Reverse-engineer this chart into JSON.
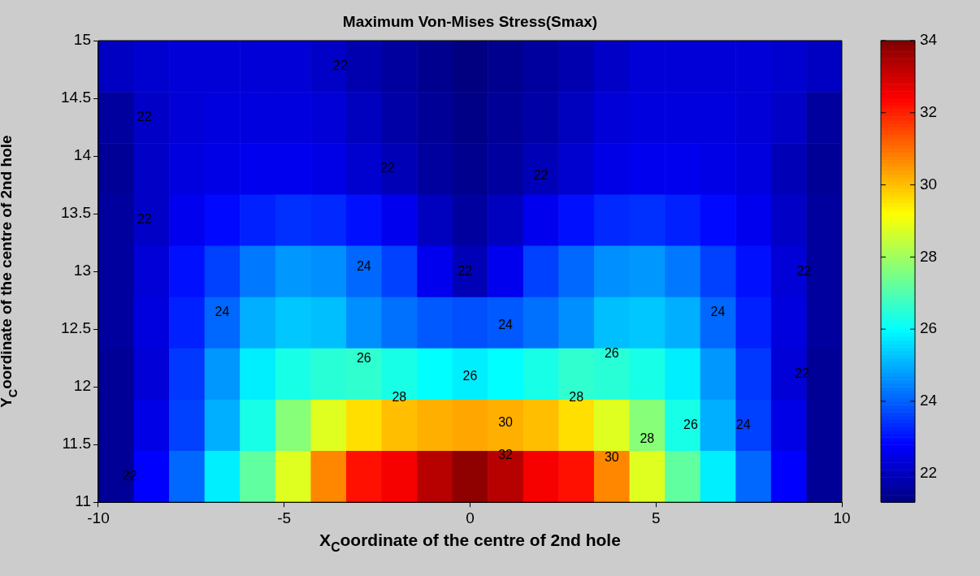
{
  "chart_data": {
    "type": "heatmap",
    "title": "Maximum Von-Mises Stress(Smax)",
    "xlabel": "X$_{C}$oordinate of the centre of 2nd hole",
    "ylabel": "Y$_{C}$oordinate of the centre of 2nd hole",
    "cells": [
      [
        22.05,
        22.2,
        22.3,
        22.3,
        22.3,
        22.3,
        22.1,
        21.8,
        21.6,
        21.4,
        21.2,
        21.4,
        21.6,
        21.8,
        22.1,
        22.3,
        22.3,
        22.3,
        22.3,
        22.2,
        22.05
      ],
      [
        21.6,
        22.1,
        22.3,
        22.4,
        22.4,
        22.4,
        22.3,
        22.0,
        21.7,
        21.5,
        21.3,
        21.5,
        21.7,
        22.0,
        22.3,
        22.4,
        22.4,
        22.4,
        22.3,
        22.1,
        21.6
      ],
      [
        21.5,
        22.1,
        22.4,
        22.5,
        22.6,
        22.6,
        22.5,
        22.2,
        21.9,
        21.6,
        21.4,
        21.6,
        21.9,
        22.2,
        22.5,
        22.6,
        22.6,
        22.5,
        22.4,
        21.9,
        21.5
      ],
      [
        21.6,
        22.1,
        22.6,
        22.9,
        23.2,
        23.4,
        23.3,
        23.0,
        22.6,
        22.0,
        21.6,
        22.0,
        22.6,
        23.0,
        23.3,
        23.4,
        23.2,
        22.9,
        22.6,
        22.1,
        21.6
      ],
      [
        21.6,
        22.3,
        23.0,
        23.6,
        24.3,
        24.7,
        24.6,
        24.1,
        23.6,
        22.6,
        21.9,
        22.6,
        23.6,
        24.1,
        24.6,
        24.7,
        24.3,
        23.6,
        23.0,
        22.3,
        21.6
      ],
      [
        21.6,
        22.4,
        23.2,
        24.1,
        25.0,
        25.3,
        25.2,
        24.6,
        24.2,
        23.9,
        23.8,
        23.9,
        24.2,
        24.6,
        25.2,
        25.3,
        25.0,
        24.1,
        23.2,
        22.4,
        21.6
      ],
      [
        21.5,
        22.3,
        23.5,
        24.7,
        25.8,
        26.3,
        26.5,
        26.6,
        26.3,
        26.0,
        25.8,
        26.0,
        26.3,
        26.6,
        26.5,
        26.3,
        25.8,
        24.7,
        23.5,
        22.3,
        21.5
      ],
      [
        21.5,
        22.5,
        23.6,
        25.0,
        26.3,
        27.7,
        28.8,
        29.6,
        30.0,
        30.2,
        30.3,
        30.2,
        30.0,
        29.6,
        28.8,
        27.7,
        26.3,
        25.0,
        23.6,
        22.5,
        21.5
      ],
      [
        21.5,
        22.8,
        24.1,
        25.8,
        27.2,
        28.8,
        30.7,
        32.2,
        32.5,
        33.3,
        33.8,
        33.3,
        32.5,
        32.2,
        30.7,
        28.8,
        27.2,
        25.8,
        24.1,
        22.8,
        21.5
      ]
    ],
    "xlim": [
      -10,
      10
    ],
    "xticks": [
      -10,
      -5,
      0,
      5,
      10
    ],
    "ylim": [
      11,
      15
    ],
    "yticks": [
      11,
      11.5,
      12,
      12.5,
      13,
      13.5,
      14,
      14.5,
      15
    ],
    "clim": [
      21.2,
      34
    ],
    "cticks": [
      22,
      24,
      26,
      28,
      30,
      32,
      34
    ],
    "annotations": [
      "22",
      "22",
      "22",
      "22",
      "22",
      "22",
      "22",
      "22",
      "22",
      "24",
      "24",
      "24",
      "24",
      "24",
      "26",
      "26",
      "26",
      "26",
      "28",
      "28",
      "28",
      "30",
      "30",
      "32"
    ]
  }
}
